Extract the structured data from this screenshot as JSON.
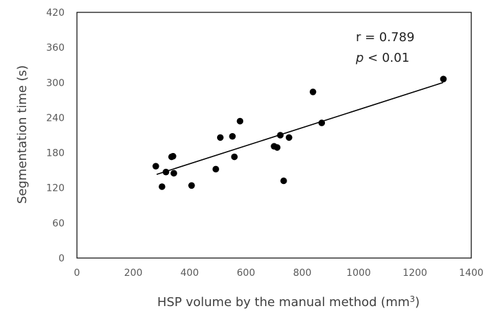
{
  "chart_data": {
    "type": "scatter",
    "title": "",
    "xlabel": "HSP volume by the manual method (mm",
    "xlabel_sup": "3",
    "xlabel_close": ")",
    "ylabel": "Segmentation time (s)",
    "xlim": [
      0,
      1400
    ],
    "ylim": [
      0,
      420
    ],
    "x_ticks": [
      "0",
      "200",
      "400",
      "600",
      "800",
      "1000",
      "1200",
      "1400"
    ],
    "y_ticks": [
      "0",
      "60",
      "120",
      "180",
      "240",
      "300",
      "360",
      "420"
    ],
    "grid": false,
    "legend": "none",
    "point_color": "#000000",
    "trendline": {
      "x": [
        283,
        1300
      ],
      "y": [
        143,
        300
      ]
    },
    "annotations": {
      "r_text": "r = 0.789",
      "p_symbol": "p",
      "p_rest": " < 0.01"
    },
    "points": [
      {
        "x": 280,
        "y": 157
      },
      {
        "x": 302,
        "y": 122
      },
      {
        "x": 316,
        "y": 147
      },
      {
        "x": 336,
        "y": 173
      },
      {
        "x": 341,
        "y": 174
      },
      {
        "x": 344,
        "y": 145
      },
      {
        "x": 407,
        "y": 124
      },
      {
        "x": 493,
        "y": 152
      },
      {
        "x": 509,
        "y": 206
      },
      {
        "x": 552,
        "y": 208
      },
      {
        "x": 559,
        "y": 173
      },
      {
        "x": 579,
        "y": 234
      },
      {
        "x": 700,
        "y": 191
      },
      {
        "x": 711,
        "y": 189
      },
      {
        "x": 722,
        "y": 210
      },
      {
        "x": 734,
        "y": 132
      },
      {
        "x": 753,
        "y": 206
      },
      {
        "x": 838,
        "y": 284
      },
      {
        "x": 869,
        "y": 231
      },
      {
        "x": 1301,
        "y": 306
      }
    ]
  }
}
